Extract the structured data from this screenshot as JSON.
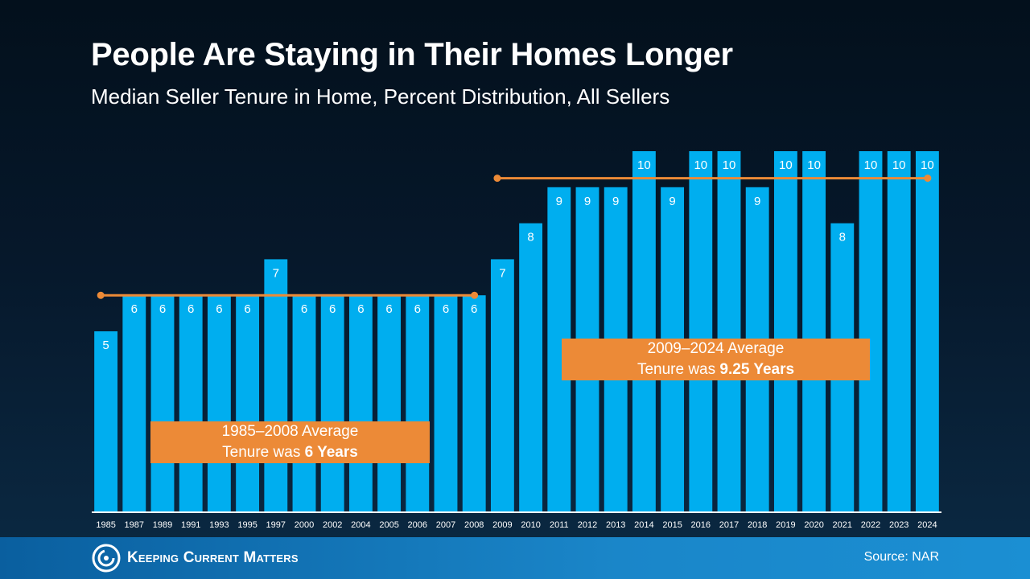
{
  "header": {
    "title": "People Are Staying in Their Homes Longer",
    "subtitle": "Median Seller Tenure in Home, Percent Distribution, All Sellers"
  },
  "chart_data": {
    "type": "bar",
    "title": "People Are Staying in Their Homes Longer",
    "subtitle": "Median Seller Tenure in Home, Percent Distribution, All Sellers",
    "categories": [
      "1985",
      "1987",
      "1989",
      "1991",
      "1993",
      "1995",
      "1997",
      "2000",
      "2002",
      "2004",
      "2005",
      "2006",
      "2007",
      "2008",
      "2009",
      "2010",
      "2011",
      "2012",
      "2013",
      "2014",
      "2015",
      "2016",
      "2017",
      "2018",
      "2019",
      "2020",
      "2021",
      "2022",
      "2023",
      "2024"
    ],
    "values": [
      5,
      6,
      6,
      6,
      6,
      6,
      7,
      6,
      6,
      6,
      6,
      6,
      6,
      6,
      7,
      8,
      9,
      9,
      9,
      10,
      9,
      10,
      10,
      9,
      10,
      10,
      8,
      10,
      10,
      10
    ],
    "ylim": [
      0,
      10
    ],
    "grid": false,
    "data_labels": true,
    "bar_color": "#00aeef",
    "annotations": [
      {
        "name": "1985-2008",
        "line1": "1985–2008 Average",
        "line2_prefix": "Tenure was ",
        "line2_bold": "6 Years",
        "average_value": 6,
        "from": "1985",
        "to": "2008"
      },
      {
        "name": "2009-2024",
        "line1": "2009–2024 Average",
        "line2_prefix": "Tenure was ",
        "line2_bold": "9.25 Years",
        "average_value": 9.25,
        "from": "2009",
        "to": "2024"
      }
    ],
    "annotation_color": "#ec8a37"
  },
  "footer": {
    "logo_text": "Keeping Current Matters",
    "source": "Source: NAR"
  },
  "colors": {
    "background": "#06182b",
    "bar": "#00aeef",
    "accent": "#ec8a37",
    "footer": "#1a86c9"
  }
}
